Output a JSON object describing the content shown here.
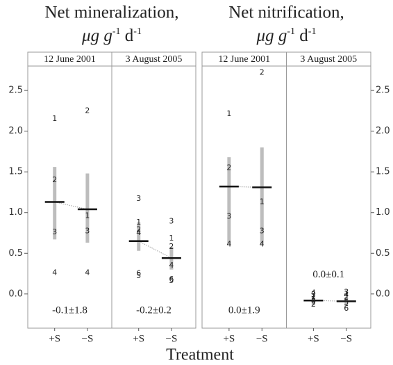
{
  "chart_data": {
    "type": "faceted-dotplot",
    "xlabel": "Treatment",
    "categories": [
      "+S",
      "−S"
    ],
    "ylim": [
      -0.42,
      2.8
    ],
    "yticks": [
      {
        "value": 0,
        "label": "0.0"
      },
      {
        "value": 0.5,
        "label": "0.5"
      },
      {
        "value": 1,
        "label": "1.0"
      },
      {
        "value": 1.5,
        "label": "1.5"
      },
      {
        "value": 2,
        "label": "2.0"
      },
      {
        "value": 2.5,
        "label": "2.5"
      }
    ],
    "mean_color": "#111",
    "ci_color": "#bdbdbd",
    "panels": [
      {
        "title": "Net mineralization,",
        "units": [
          "μg g",
          "-1",
          " d",
          "-1"
        ],
        "axis_side": "left",
        "facets": [
          {
            "label": "12 June 2001",
            "annotation": "-0.1±1.8",
            "groups": [
              {
                "mean": 1.13,
                "ci": [
                  0.67,
                  1.56
                ],
                "points": [
                  {
                    "label": "1",
                    "value": 2.15
                  },
                  {
                    "label": "2",
                    "value": 1.4
                  },
                  {
                    "label": "3",
                    "value": 0.76
                  },
                  {
                    "label": "4",
                    "value": 0.26
                  }
                ]
              },
              {
                "mean": 1.04,
                "ci": [
                  0.63,
                  1.48
                ],
                "points": [
                  {
                    "label": "2",
                    "value": 2.25
                  },
                  {
                    "label": "1",
                    "value": 0.96
                  },
                  {
                    "label": "3",
                    "value": 0.77
                  },
                  {
                    "label": "4",
                    "value": 0.26
                  }
                ]
              }
            ]
          },
          {
            "label": "3 August 2005",
            "annotation": "-0.2±0.2",
            "groups": [
              {
                "mean": 0.65,
                "ci": [
                  0.53,
                  0.88
                ],
                "points": [
                  {
                    "label": "3",
                    "value": 1.17
                  },
                  {
                    "label": "1",
                    "value": 0.88
                  },
                  {
                    "label": "2",
                    "value": 0.79
                  },
                  {
                    "label": "4",
                    "value": 0.75
                  },
                  {
                    "label": "6",
                    "value": 0.25
                  },
                  {
                    "label": "5",
                    "value": 0.22
                  }
                ]
              },
              {
                "mean": 0.44,
                "ci": [
                  0.3,
                  0.58
                ],
                "points": [
                  {
                    "label": "3",
                    "value": 0.89
                  },
                  {
                    "label": "1",
                    "value": 0.68
                  },
                  {
                    "label": "2",
                    "value": 0.58
                  },
                  {
                    "label": "4",
                    "value": 0.35
                  },
                  {
                    "label": "6",
                    "value": 0.18
                  },
                  {
                    "label": "5",
                    "value": 0.16
                  }
                ]
              }
            ]
          }
        ]
      },
      {
        "title": "Net nitrification,",
        "units": [
          "μg g",
          "-1",
          " d",
          "-1"
        ],
        "axis_side": "right",
        "facets": [
          {
            "label": "12 June 2001",
            "annotation": "0.0±1.9",
            "groups": [
              {
                "mean": 1.32,
                "ci": [
                  0.61,
                  1.68
                ],
                "points": [
                  {
                    "label": "1",
                    "value": 2.21
                  },
                  {
                    "label": "2",
                    "value": 1.55
                  },
                  {
                    "label": "3",
                    "value": 0.95
                  },
                  {
                    "label": "4",
                    "value": 0.61
                  }
                ]
              },
              {
                "mean": 1.31,
                "ci": [
                  0.61,
                  1.8
                ],
                "points": [
                  {
                    "label": "2",
                    "value": 2.72
                  },
                  {
                    "label": "1",
                    "value": 1.13
                  },
                  {
                    "label": "3",
                    "value": 0.77
                  },
                  {
                    "label": "4",
                    "value": 0.61
                  }
                ]
              }
            ]
          },
          {
            "label": "3 August 2005",
            "annotation": "0.0±0.1",
            "groups": [
              {
                "mean": -0.08,
                "ci": [
                  -0.14,
                  -0.02
                ],
                "points": [
                  {
                    "label": "4",
                    "value": 0.01
                  },
                  {
                    "label": "3",
                    "value": -0.01
                  },
                  {
                    "label": "1",
                    "value": -0.04
                  },
                  {
                    "label": "5",
                    "value": -0.07
                  },
                  {
                    "label": "6",
                    "value": -0.09
                  },
                  {
                    "label": "2",
                    "value": -0.13
                  }
                ]
              },
              {
                "mean": -0.09,
                "ci": [
                  -0.15,
                  -0.04
                ],
                "points": [
                  {
                    "label": "3",
                    "value": 0.02
                  },
                  {
                    "label": "1",
                    "value": 0.0
                  },
                  {
                    "label": "4",
                    "value": -0.02
                  },
                  {
                    "label": "2",
                    "value": -0.04
                  },
                  {
                    "label": "5",
                    "value": -0.11
                  },
                  {
                    "label": "6",
                    "value": -0.18
                  }
                ]
              }
            ]
          }
        ]
      }
    ]
  }
}
